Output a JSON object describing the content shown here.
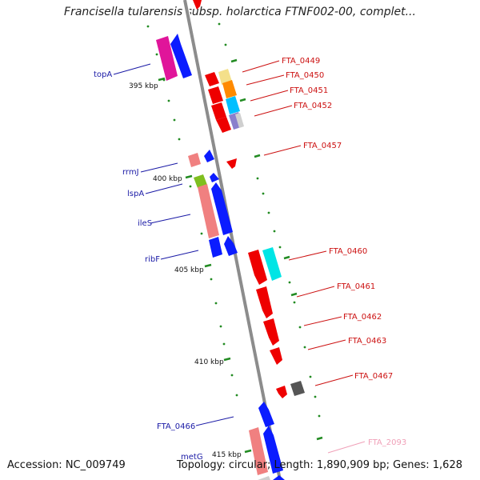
{
  "title": "Francisella tularensis subsp. holarctica FTNF002-00, complet...",
  "footer": {
    "accession": "Accession: NC_009749",
    "topology": "Topology: circular; Length: 1,890,909 bp; Genes: 1,628"
  },
  "ticks": [
    "395 kbp",
    "400 kbp",
    "405 kbp",
    "410 kbp",
    "415 kbp"
  ],
  "left_labels": [
    "topA",
    "rrmJ",
    "lspA",
    "ileS",
    "ribF",
    "FTA_0466",
    "metG"
  ],
  "right_labels": [
    "FTA_0449",
    "FTA_0450",
    "FTA_0451",
    "FTA_0452",
    "FTA_0457",
    "FTA_0460",
    "FTA_0461",
    "FTA_0462",
    "FTA_0463",
    "FTA_0467",
    "FTA_2093"
  ],
  "colors": {
    "backbone": "#8c8c8c",
    "forward_gene": "#0000ee",
    "reverse_gene": "#ee0000",
    "left_label": "#1a1aa6",
    "right_label": "#cc1111",
    "faded_label": "#f0a0b8",
    "tick_mark": "#228b22"
  }
}
